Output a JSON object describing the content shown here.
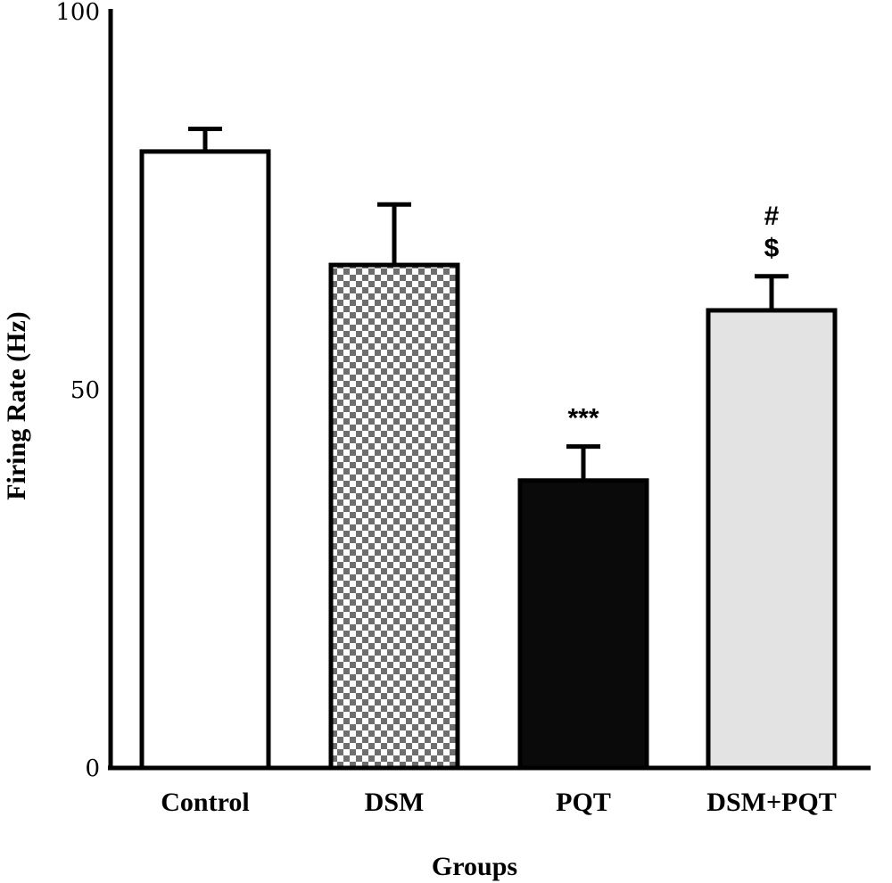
{
  "chart_data": {
    "type": "bar",
    "title": "",
    "xlabel": "Groups",
    "ylabel": "Firing Rate (Hz)",
    "ylim": [
      0,
      100
    ],
    "yticks": [
      0,
      50,
      100
    ],
    "categories": [
      "Control",
      "DSM",
      "PQT",
      "DSM+PQT"
    ],
    "values": [
      81.5,
      66.5,
      38.0,
      60.5
    ],
    "errors": [
      3.0,
      8.0,
      4.5,
      4.5
    ],
    "annotations": [
      {
        "category": "PQT",
        "lines": [
          "***"
        ]
      },
      {
        "category": "DSM+PQT",
        "lines": [
          "#",
          "$"
        ]
      }
    ],
    "fills": [
      {
        "category": "Control",
        "pattern": "solid",
        "color": "#ffffff"
      },
      {
        "category": "DSM",
        "pattern": "checkerboard",
        "color": "#6e6e6e"
      },
      {
        "category": "PQT",
        "pattern": "solid",
        "color": "#0a0a0a"
      },
      {
        "category": "DSM+PQT",
        "pattern": "solid",
        "color": "#e3e3e3"
      }
    ],
    "grid": false,
    "legend": "none"
  }
}
